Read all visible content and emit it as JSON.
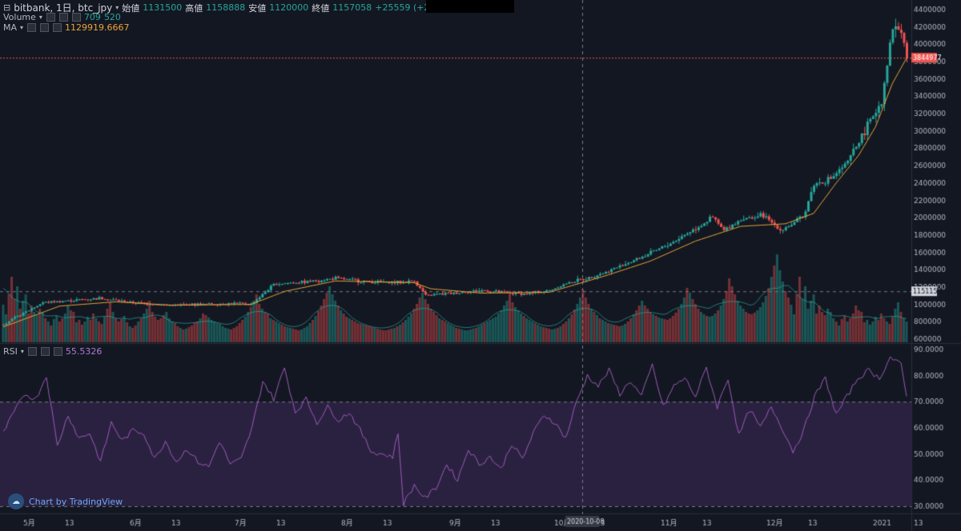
{
  "header": {
    "symbol": "bitbank, 1日, btc_jpy",
    "open_label": "始値",
    "open": "1131500",
    "high_label": "高値",
    "high": "1158888",
    "low_label": "安値",
    "low": "1120000",
    "close_label": "終値",
    "close": "1157058",
    "change": "+25559 (+2.26%)"
  },
  "volume_legend": {
    "label": "Volume",
    "v1": "709",
    "v2": "520"
  },
  "ma_legend": {
    "label": "MA",
    "value": "1129919.6667"
  },
  "rsi_legend": {
    "label": "RSI",
    "value": "55.5326"
  },
  "watermark": "Chart by TradingView",
  "colors": {
    "bg": "#131722",
    "up": "#26a69a",
    "down": "#ef5350",
    "ma": "#e8a735",
    "rsi": "#9c5ab8",
    "rsi_band": "#2a2140",
    "text": "#b2b5be"
  },
  "chart_data": {
    "type": "candlestick",
    "price_axis": {
      "ticks": [
        "4400000",
        "4200000",
        "4000000",
        "3800000",
        "3600000",
        "3400000",
        "3200000",
        "3000000",
        "2800000",
        "2600000",
        "2400000",
        "2200000",
        "2000000",
        "1800000",
        "1600000",
        "1400000",
        "1200000",
        "1000000",
        "800000",
        "600000"
      ],
      "ylim": [
        600000,
        4400000
      ]
    },
    "rsi_axis": {
      "ticks": [
        "90.0000",
        "80.0000",
        "70.0000",
        "60.0000",
        "50.0000",
        "40.0000",
        "30.0000"
      ],
      "ylim": [
        30,
        90
      ]
    },
    "x_labels": [
      "5月",
      "13",
      "6月",
      "13",
      "7月",
      "13",
      "8月",
      "13",
      "9月",
      "13",
      "10月",
      "13",
      "11月",
      "13",
      "12月",
      "13",
      "2021",
      "13"
    ],
    "price_anchors": [
      [
        0,
        770000
      ],
      [
        14,
        1020000
      ],
      [
        22,
        1040000
      ],
      [
        34,
        1070000
      ],
      [
        46,
        1020000
      ],
      [
        58,
        990000
      ],
      [
        70,
        1000000
      ],
      [
        82,
        1010000
      ],
      [
        88,
        1000000
      ],
      [
        96,
        1230000
      ],
      [
        110,
        1270000
      ],
      [
        118,
        1300000
      ],
      [
        130,
        1260000
      ],
      [
        140,
        1250000
      ],
      [
        146,
        1270000
      ],
      [
        150,
        1100000
      ],
      [
        160,
        1130000
      ],
      [
        170,
        1160000
      ],
      [
        178,
        1130000
      ],
      [
        186,
        1120000
      ],
      [
        194,
        1160000
      ],
      [
        200,
        1240000
      ],
      [
        206,
        1290000
      ],
      [
        214,
        1370000
      ],
      [
        222,
        1480000
      ],
      [
        230,
        1590000
      ],
      [
        238,
        1720000
      ],
      [
        246,
        1880000
      ],
      [
        252,
        2000000
      ],
      [
        256,
        1850000
      ],
      [
        262,
        1980000
      ],
      [
        270,
        2020000
      ],
      [
        276,
        1860000
      ],
      [
        280,
        1920000
      ],
      [
        284,
        2000000
      ],
      [
        288,
        2380000
      ],
      [
        294,
        2450000
      ],
      [
        300,
        2640000
      ],
      [
        306,
        3000000
      ],
      [
        312,
        3350000
      ],
      [
        316,
        4200000
      ],
      [
        319,
        4150000
      ],
      [
        321,
        3840000
      ]
    ],
    "ma_anchors": [
      [
        0,
        740000
      ],
      [
        20,
        980000
      ],
      [
        40,
        1030000
      ],
      [
        60,
        990000
      ],
      [
        88,
        1000000
      ],
      [
        100,
        1150000
      ],
      [
        118,
        1270000
      ],
      [
        146,
        1250000
      ],
      [
        152,
        1180000
      ],
      [
        170,
        1130000
      ],
      [
        194,
        1140000
      ],
      [
        214,
        1330000
      ],
      [
        230,
        1500000
      ],
      [
        246,
        1730000
      ],
      [
        262,
        1900000
      ],
      [
        278,
        1930000
      ],
      [
        288,
        2050000
      ],
      [
        296,
        2400000
      ],
      [
        304,
        2720000
      ],
      [
        310,
        3050000
      ],
      [
        316,
        3550000
      ],
      [
        321,
        3840000
      ]
    ],
    "rsi_anchors": [
      [
        0,
        58
      ],
      [
        4,
        66
      ],
      [
        8,
        73
      ],
      [
        12,
        71
      ],
      [
        16,
        80
      ],
      [
        20,
        53
      ],
      [
        24,
        65
      ],
      [
        28,
        56
      ],
      [
        32,
        58
      ],
      [
        36,
        47
      ],
      [
        40,
        62
      ],
      [
        44,
        55
      ],
      [
        48,
        59
      ],
      [
        52,
        58
      ],
      [
        56,
        48
      ],
      [
        60,
        55
      ],
      [
        64,
        47
      ],
      [
        68,
        52
      ],
      [
        72,
        47
      ],
      [
        76,
        45
      ],
      [
        80,
        55
      ],
      [
        84,
        46
      ],
      [
        88,
        48
      ],
      [
        92,
        60
      ],
      [
        96,
        78
      ],
      [
        100,
        71
      ],
      [
        104,
        83
      ],
      [
        108,
        66
      ],
      [
        112,
        71
      ],
      [
        116,
        62
      ],
      [
        120,
        68
      ],
      [
        124,
        63
      ],
      [
        128,
        66
      ],
      [
        132,
        59
      ],
      [
        136,
        51
      ],
      [
        140,
        50
      ],
      [
        144,
        49
      ],
      [
        146,
        58
      ],
      [
        148,
        31
      ],
      [
        152,
        38
      ],
      [
        156,
        33
      ],
      [
        160,
        37
      ],
      [
        164,
        46
      ],
      [
        168,
        40
      ],
      [
        172,
        52
      ],
      [
        176,
        46
      ],
      [
        180,
        49
      ],
      [
        184,
        44
      ],
      [
        188,
        54
      ],
      [
        192,
        48
      ],
      [
        196,
        58
      ],
      [
        200,
        65
      ],
      [
        204,
        62
      ],
      [
        208,
        56
      ],
      [
        212,
        70
      ],
      [
        216,
        80
      ],
      [
        220,
        76
      ],
      [
        224,
        82
      ],
      [
        228,
        73
      ],
      [
        232,
        78
      ],
      [
        236,
        72
      ],
      [
        240,
        84
      ],
      [
        244,
        68
      ],
      [
        248,
        76
      ],
      [
        252,
        79
      ],
      [
        256,
        72
      ],
      [
        260,
        83
      ],
      [
        264,
        68
      ],
      [
        268,
        79
      ],
      [
        272,
        57
      ],
      [
        276,
        67
      ],
      [
        280,
        60
      ],
      [
        284,
        68
      ],
      [
        288,
        60
      ],
      [
        292,
        51
      ],
      [
        296,
        59
      ],
      [
        300,
        72
      ],
      [
        304,
        79
      ],
      [
        308,
        65
      ],
      [
        312,
        72
      ],
      [
        316,
        79
      ],
      [
        320,
        82
      ],
      [
        324,
        79
      ],
      [
        328,
        87
      ],
      [
        332,
        84
      ],
      [
        334,
        72
      ]
    ],
    "volume_pattern": [
      470,
      350,
      600,
      820,
      540,
      700,
      420,
      520,
      600,
      360,
      460,
      380,
      340,
      420,
      380,
      300,
      260,
      210,
      290,
      330,
      260,
      300,
      360,
      460,
      400,
      380,
      250,
      280,
      220,
      260,
      320,
      280,
      360,
      300,
      260,
      230,
      320,
      420,
      500,
      380,
      300,
      260,
      290,
      330,
      250,
      200,
      180,
      210,
      260,
      300,
      360,
      420,
      520,
      380,
      320,
      280,
      300,
      340,
      380,
      300,
      260,
      240,
      200,
      180,
      160,
      170,
      190,
      210,
      240,
      260,
      300,
      360,
      340,
      310,
      280,
      260,
      240,
      230,
      200,
      180,
      170,
      160,
      180,
      200,
      240,
      280,
      320,
      380,
      440,
      520,
      600,
      480,
      420,
      380,
      360,
      300,
      280,
      260,
      240,
      220,
      200,
      190,
      180,
      170,
      160,
      150,
      160,
      180,
      200,
      240,
      280,
      330,
      390,
      460,
      540,
      620,
      700,
      600,
      520,
      460,
      400,
      360,
      320,
      300,
      280,
      260,
      240,
      230,
      220,
      210,
      200,
      190,
      180,
      170,
      160,
      150,
      150,
      160,
      170,
      180,
      200,
      220,
      250,
      280,
      320,
      360,
      420,
      480,
      560,
      620,
      540,
      480,
      420,
      380,
      340,
      300,
      280,
      260,
      240,
      220,
      200,
      180,
      170,
      160,
      150,
      150,
      160,
      170,
      180,
      200,
      220,
      240,
      260,
      280,
      300,
      320,
      360,
      400,
      460,
      520,
      600,
      500,
      440,
      400,
      360,
      330,
      300,
      280,
      260,
      240,
      220,
      200,
      190,
      180,
      170,
      160,
      170,
      180,
      200,
      230,
      260,
      300,
      350,
      410,
      480,
      560,
      660,
      560,
      480,
      420,
      380,
      340,
      300,
      280,
      260,
      240,
      230,
      220,
      210,
      200,
      210,
      230,
      260,
      300,
      350,
      400,
      460,
      520,
      460,
      420,
      380,
      350,
      330,
      310,
      300,
      290,
      280,
      300,
      330,
      370,
      420,
      480,
      560,
      680,
      620,
      540,
      480,
      420,
      380,
      350,
      330,
      320,
      330,
      360,
      400,
      460,
      540,
      640,
      800,
      700,
      600,
      520,
      460,
      420,
      380,
      360,
      350,
      370,
      400,
      440,
      500,
      580,
      680,
      820,
      960,
      1100,
      900,
      760,
      640,
      560
    ]
  }
}
